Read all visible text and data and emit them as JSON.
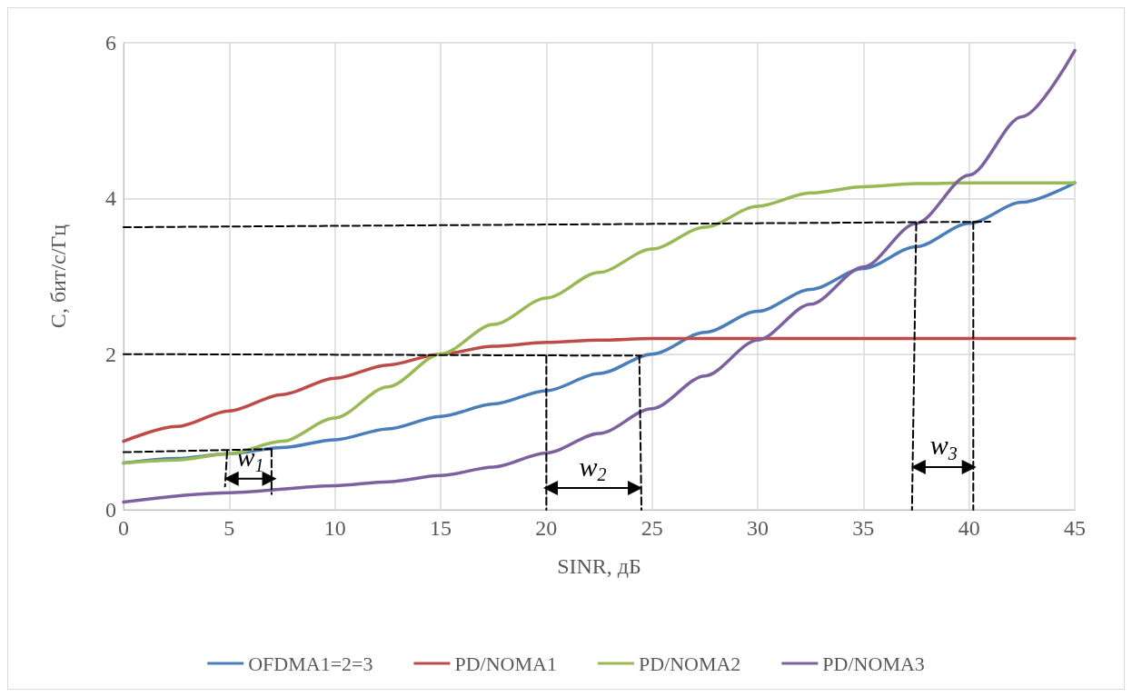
{
  "chart_data": {
    "type": "line",
    "xlabel": "SINR, дБ",
    "ylabel": "C, бит/с/Гц",
    "xlim": [
      0,
      45
    ],
    "xticks": [
      0,
      5,
      10,
      15,
      20,
      25,
      30,
      35,
      40,
      45
    ],
    "ylim": [
      0,
      6
    ],
    "yticks": [
      0,
      2,
      4,
      6
    ],
    "grid": true,
    "legend": "bottom",
    "marker": "none",
    "line_style": "solid",
    "series": [
      {
        "name": "OFDMA1=2=3",
        "color": "#4a7ebb",
        "x": [
          0,
          2.5,
          5,
          7.5,
          10,
          12.5,
          15,
          17.5,
          20,
          22.5,
          25,
          27.5,
          30,
          32.5,
          35,
          37.5,
          40,
          42.5,
          45
        ],
        "values": [
          0.6,
          0.66,
          0.72,
          0.8,
          0.9,
          1.04,
          1.2,
          1.36,
          1.53,
          1.75,
          2.0,
          2.28,
          2.55,
          2.83,
          3.1,
          3.38,
          3.68,
          3.95,
          4.2
        ]
      },
      {
        "name": "PD/NOMA1",
        "color": "#be4b48",
        "x": [
          0,
          2.5,
          5,
          7.5,
          10,
          12.5,
          15,
          17.5,
          20,
          22.5,
          25,
          27.5,
          30,
          35,
          40,
          45
        ],
        "values": [
          0.88,
          1.07,
          1.27,
          1.48,
          1.69,
          1.86,
          2.0,
          2.1,
          2.15,
          2.18,
          2.2,
          2.2,
          2.2,
          2.2,
          2.2,
          2.2
        ]
      },
      {
        "name": "PD/NOMA2",
        "color": "#98b954",
        "x": [
          0,
          2.5,
          5,
          7.5,
          10,
          12.5,
          15,
          17.5,
          20,
          22.5,
          25,
          27.5,
          30,
          32.5,
          35,
          37.5,
          40,
          45
        ],
        "values": [
          0.6,
          0.64,
          0.72,
          0.88,
          1.18,
          1.58,
          2.0,
          2.38,
          2.72,
          3.05,
          3.35,
          3.63,
          3.9,
          4.07,
          4.15,
          4.19,
          4.2,
          4.2
        ]
      },
      {
        "name": "PD/NOMA3",
        "color": "#7d60a0",
        "x": [
          0,
          5,
          10,
          12.5,
          15,
          17.5,
          20,
          22.5,
          25,
          27.5,
          30,
          32.5,
          35,
          37.5,
          40,
          42.5,
          45
        ],
        "values": [
          0.1,
          0.22,
          0.31,
          0.36,
          0.44,
          0.55,
          0.73,
          0.98,
          1.3,
          1.72,
          2.18,
          2.64,
          3.12,
          3.68,
          4.3,
          5.05,
          5.9
        ]
      },
      {
        "color": "#000000",
        "line_style": "dashed",
        "x": [
          0,
          7
        ],
        "values": [
          0.74,
          0.78
        ]
      },
      {
        "color": "#000000",
        "line_style": "dashed",
        "x": [
          4.9,
          4.8
        ],
        "values": [
          0.75,
          0.3
        ]
      },
      {
        "color": "#000000",
        "line_style": "dashed",
        "x": [
          7,
          7
        ],
        "values": [
          0.78,
          0.2
        ]
      },
      {
        "color": "#000000",
        "line_style": "dashed",
        "x": [
          0,
          24.5
        ],
        "values": [
          2.0,
          1.98
        ]
      },
      {
        "color": "#000000",
        "line_style": "dashed",
        "x": [
          20,
          20
        ],
        "values": [
          1.98,
          0
        ]
      },
      {
        "color": "#000000",
        "line_style": "dashed",
        "x": [
          24.4,
          24.5
        ],
        "values": [
          1.98,
          0
        ]
      },
      {
        "color": "#000000",
        "line_style": "dashed",
        "x": [
          0,
          41
        ],
        "values": [
          3.63,
          3.7
        ]
      },
      {
        "color": "#000000",
        "line_style": "dashed",
        "x": [
          37.5,
          37.3
        ],
        "values": [
          3.68,
          0
        ]
      },
      {
        "color": "#000000",
        "line_style": "dashed",
        "x": [
          40.2,
          40.2
        ],
        "values": [
          3.7,
          0
        ]
      },
      {
        "color": "#000000",
        "marker": "triangle",
        "x": [
          5.1,
          6.9
        ],
        "values": [
          0.4,
          0.4
        ]
      },
      {
        "color": "#000000",
        "marker": "triangle",
        "x": [
          20.2,
          24.2
        ],
        "values": [
          0.28,
          0.28
        ]
      },
      {
        "color": "#000000",
        "marker": "triangle",
        "x": [
          37.6,
          40.0
        ],
        "values": [
          0.55,
          0.55
        ]
      }
    ],
    "annotations": [
      "w$_{1}$",
      "w$_{2}$",
      "w$_{3}$"
    ]
  }
}
